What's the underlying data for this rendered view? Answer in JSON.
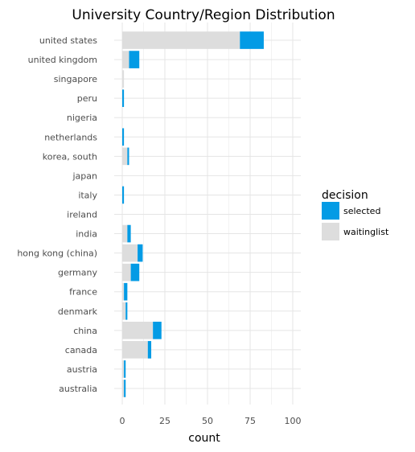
{
  "chart_data": {
    "type": "bar",
    "orientation": "horizontal",
    "stacked": true,
    "title": "University Country/Region Distribution",
    "xlabel": "count",
    "ylabel": "",
    "xlim": [
      0,
      100
    ],
    "xticks": [
      0,
      25,
      50,
      75,
      100
    ],
    "grid": true,
    "legend_position": "right",
    "legend_title": "decision",
    "categories": [
      "united states",
      "united kingdom",
      "singapore",
      "peru",
      "nigeria",
      "netherlands",
      "korea, south",
      "japan",
      "italy",
      "ireland",
      "india",
      "hong kong (china)",
      "germany",
      "france",
      "denmark",
      "china",
      "canada",
      "austria",
      "australia"
    ],
    "series": [
      {
        "name": "waitinglist",
        "color": "#dddddd",
        "values": [
          69,
          4,
          1,
          0,
          0,
          0,
          3,
          0,
          0,
          0,
          3,
          9,
          5,
          1,
          2,
          18,
          15,
          1,
          1
        ]
      },
      {
        "name": "selected",
        "color": "#039be5",
        "values": [
          14,
          6,
          0,
          1,
          0,
          1,
          1,
          0,
          1,
          0,
          2,
          3,
          5,
          2,
          1,
          5,
          2,
          1,
          1
        ]
      }
    ]
  }
}
